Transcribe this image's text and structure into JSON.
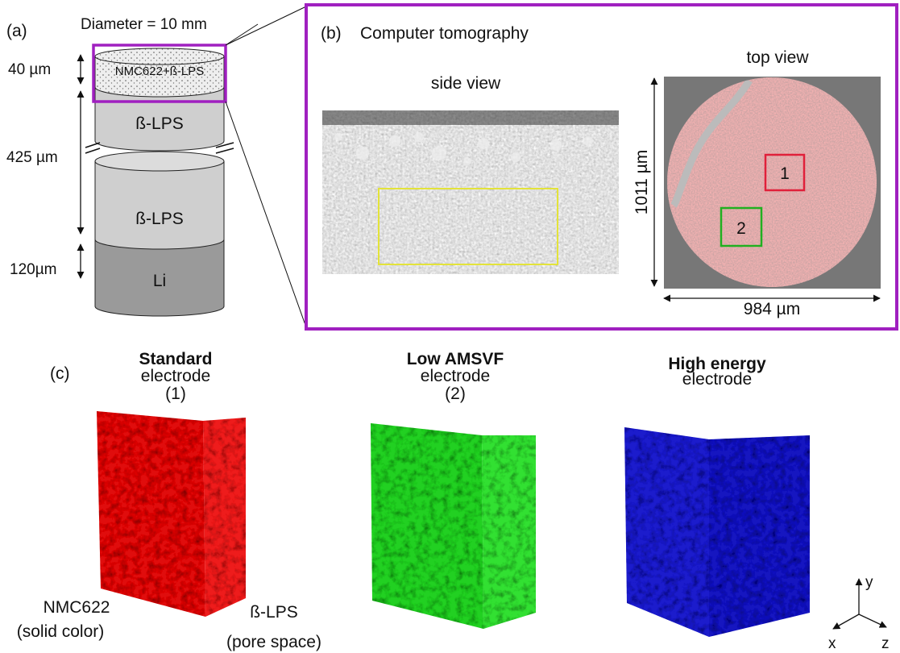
{
  "panel_a": {
    "label": "(a)",
    "diameter": "Diameter = 10 mm",
    "layers": [
      {
        "name": "NMC622+ß-LPS",
        "thickness": "40 µm"
      },
      {
        "name": "ß-LPS",
        "thickness": "425 µm"
      },
      {
        "name": "ß-LPS"
      },
      {
        "name": "Li",
        "thickness": "120µm"
      }
    ]
  },
  "panel_b": {
    "label": "(b)",
    "title": "Computer tomography",
    "side_view": "side view",
    "top_view": "top view",
    "height": "1011 µm",
    "width": "984 µm",
    "regions": [
      "1",
      "2"
    ]
  },
  "panel_c": {
    "label": "(c)",
    "electrodes": [
      {
        "name": "Standard",
        "kind": "electrode",
        "region": "(1)"
      },
      {
        "name": "Low AMSVF",
        "kind": "electrode",
        "region": "(2)"
      },
      {
        "name": "High energy",
        "kind": "electrode"
      }
    ],
    "solid": "NMC622",
    "solid_note": "(solid color)",
    "pore": "ß-LPS",
    "pore_note": "(pore space)",
    "axes": [
      "x",
      "y",
      "z"
    ]
  }
}
